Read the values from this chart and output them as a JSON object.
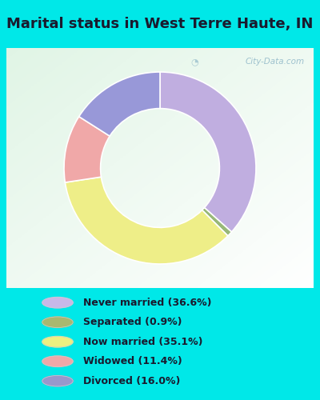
{
  "title": "Marital status in West Terre Haute, IN",
  "title_fontsize": 13,
  "chart_bg_color": "#e8f5ee",
  "outer_bg_color": "#00e8e8",
  "watermark": "City-Data.com",
  "slices": [
    36.6,
    0.9,
    35.1,
    11.4,
    16.0
  ],
  "labels": [
    "Never married (36.6%)",
    "Separated (0.9%)",
    "Now married (35.1%)",
    "Widowed (11.4%)",
    "Divorced (16.0%)"
  ],
  "colors": [
    "#c0aee0",
    "#98b878",
    "#eeee88",
    "#f0a8a8",
    "#9898d8"
  ],
  "donut_width": 0.38,
  "start_angle": 90,
  "legend_dot_colors": [
    "#c8b8e8",
    "#a8b870",
    "#eef080",
    "#f0a8a8",
    "#9898cc"
  ]
}
